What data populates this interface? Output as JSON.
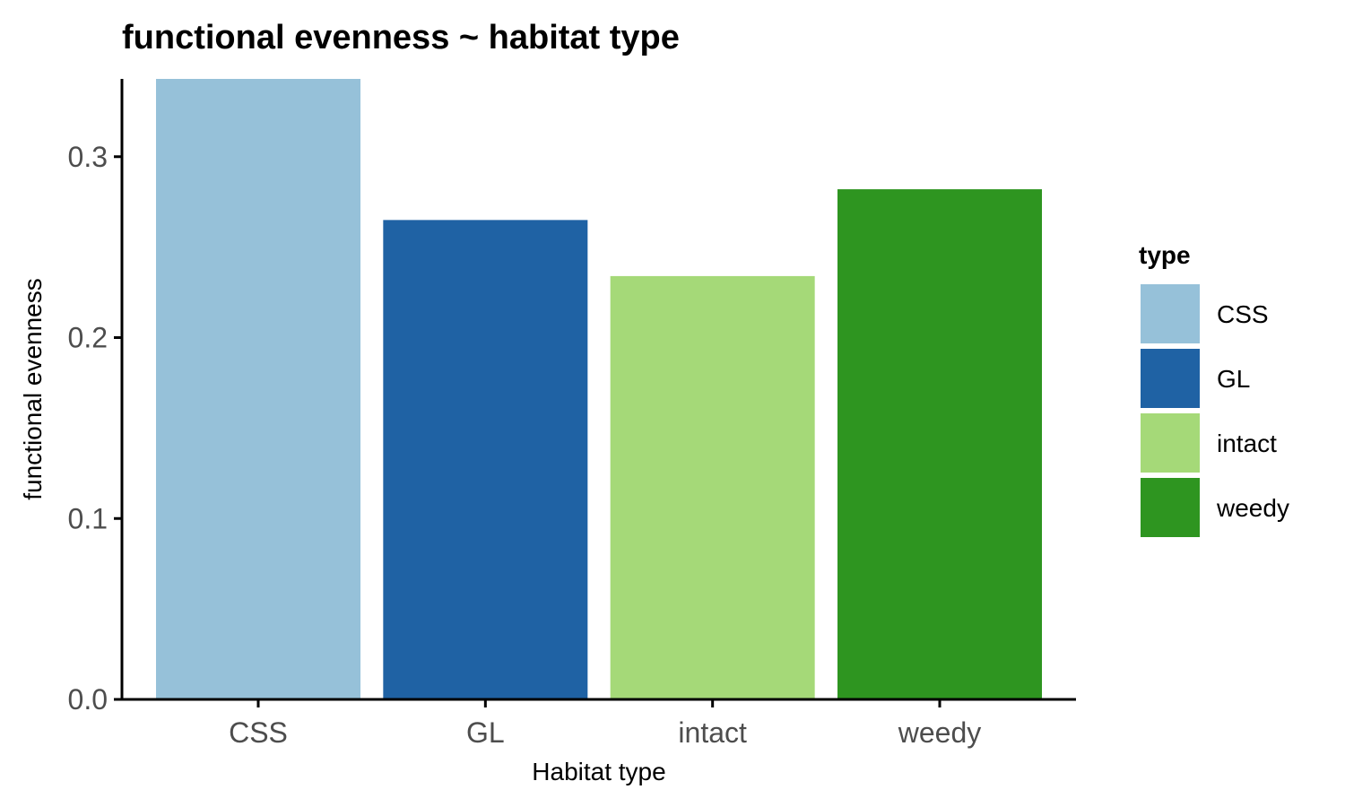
{
  "chart_data": {
    "type": "bar",
    "title": "functional evenness ~ habitat type",
    "xlabel": "Habitat type",
    "ylabel": "functional evenness",
    "categories": [
      "CSS",
      "GL",
      "intact",
      "weedy"
    ],
    "values": [
      0.343,
      0.265,
      0.234,
      0.282
    ],
    "colors": [
      "#96c1d9",
      "#1f62a4",
      "#a5d978",
      "#2e9520"
    ],
    "ylim": [
      0,
      0.343
    ],
    "yticks": [
      0.0,
      0.1,
      0.2,
      0.3
    ],
    "ytick_labels": [
      "0.0",
      "0.1",
      "0.2",
      "0.3"
    ],
    "grid": false,
    "legend": {
      "title": "type",
      "placement": "right",
      "entries": [
        "CSS",
        "GL",
        "intact",
        "weedy"
      ]
    }
  }
}
